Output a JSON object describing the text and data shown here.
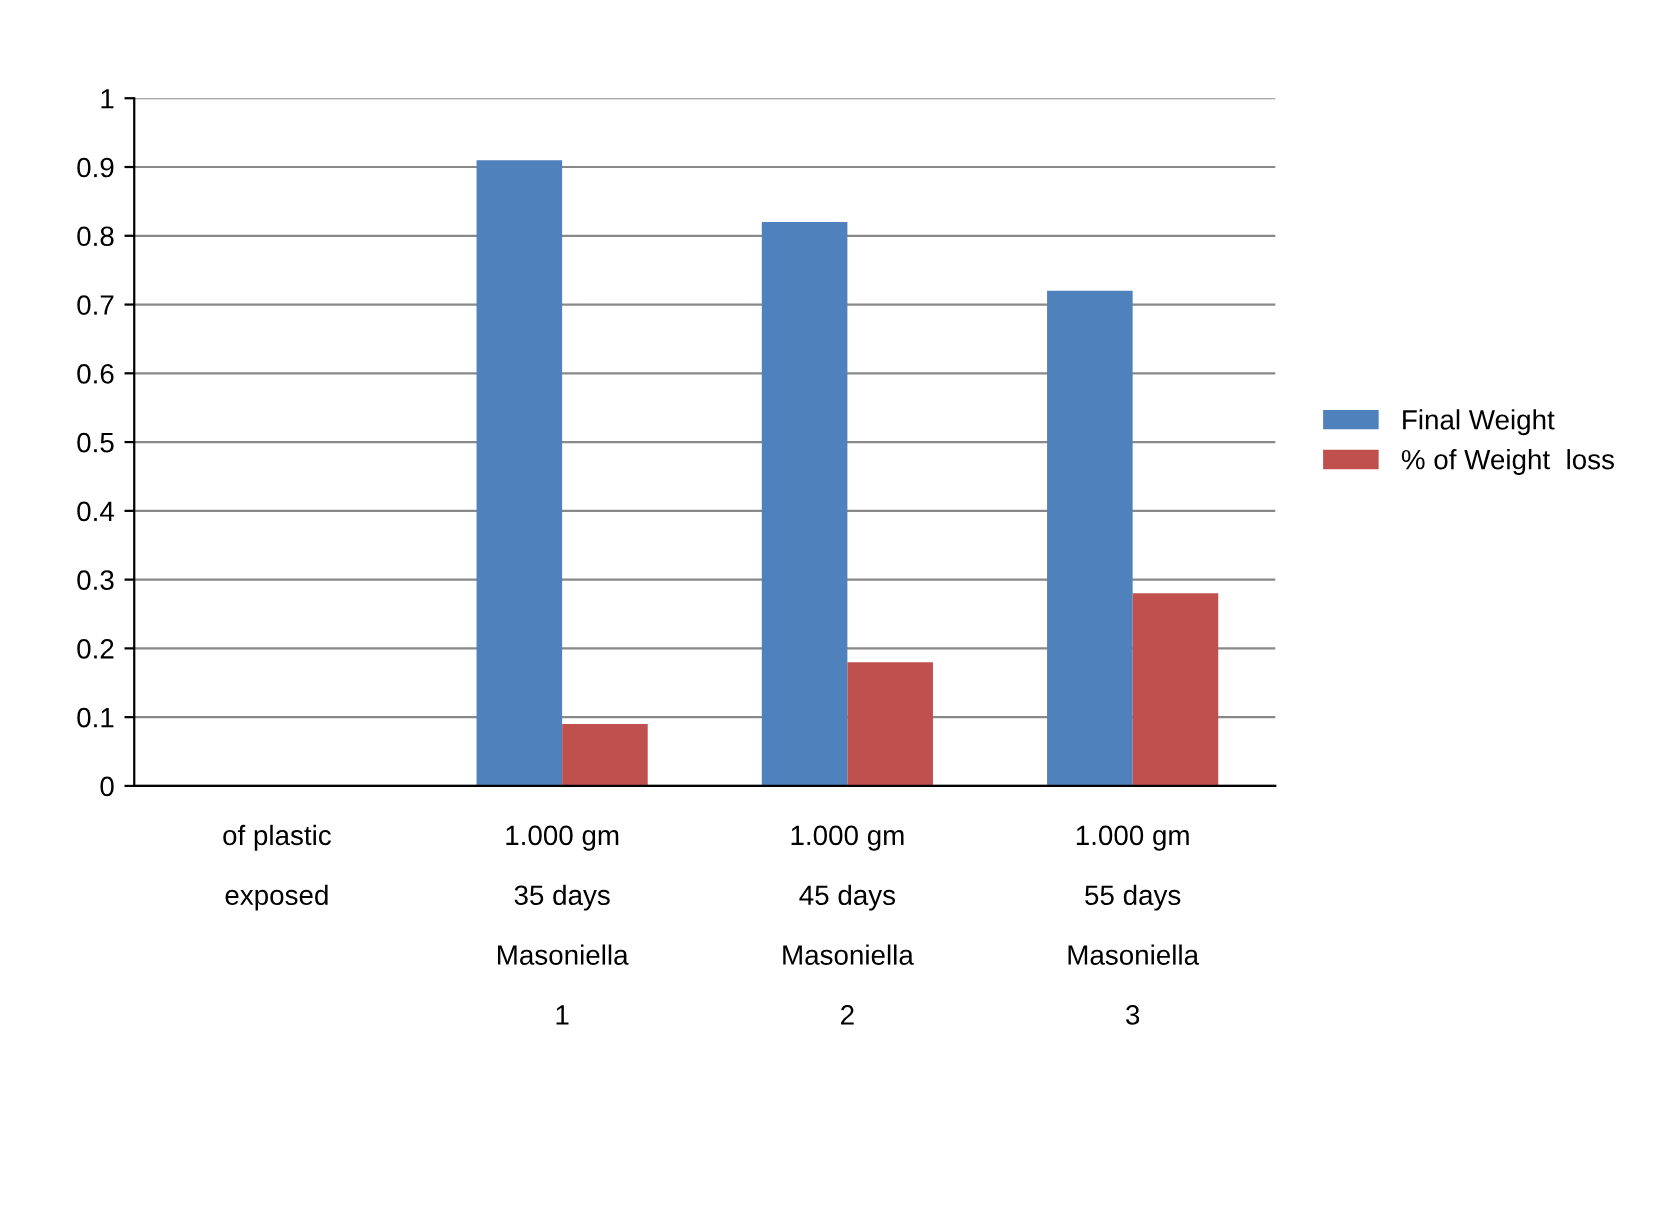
{
  "chart_data": {
    "type": "bar",
    "categories": [
      "of plastic\n\nexposed",
      "1.000 gm\n\n35 days\n\nMasoniella\n\n1",
      "1.000 gm\n\n45 days\n\nMasoniella\n\n2",
      "1.000 gm\n\n55 days\n\nMasoniella\n\n3"
    ],
    "series": [
      {
        "name": "Final Weight",
        "color": "#4f81bd",
        "values": [
          null,
          0.91,
          0.82,
          0.72
        ]
      },
      {
        "name": "% of Weight  loss",
        "color": "#c0504d",
        "values": [
          null,
          0.09,
          0.18,
          0.28
        ]
      }
    ],
    "ylim": [
      0,
      1
    ],
    "yticks": [
      0,
      0.1,
      0.2,
      0.3,
      0.4,
      0.5,
      0.6,
      0.7,
      0.8,
      0.9,
      1
    ],
    "grid": "y",
    "legend": "right"
  }
}
